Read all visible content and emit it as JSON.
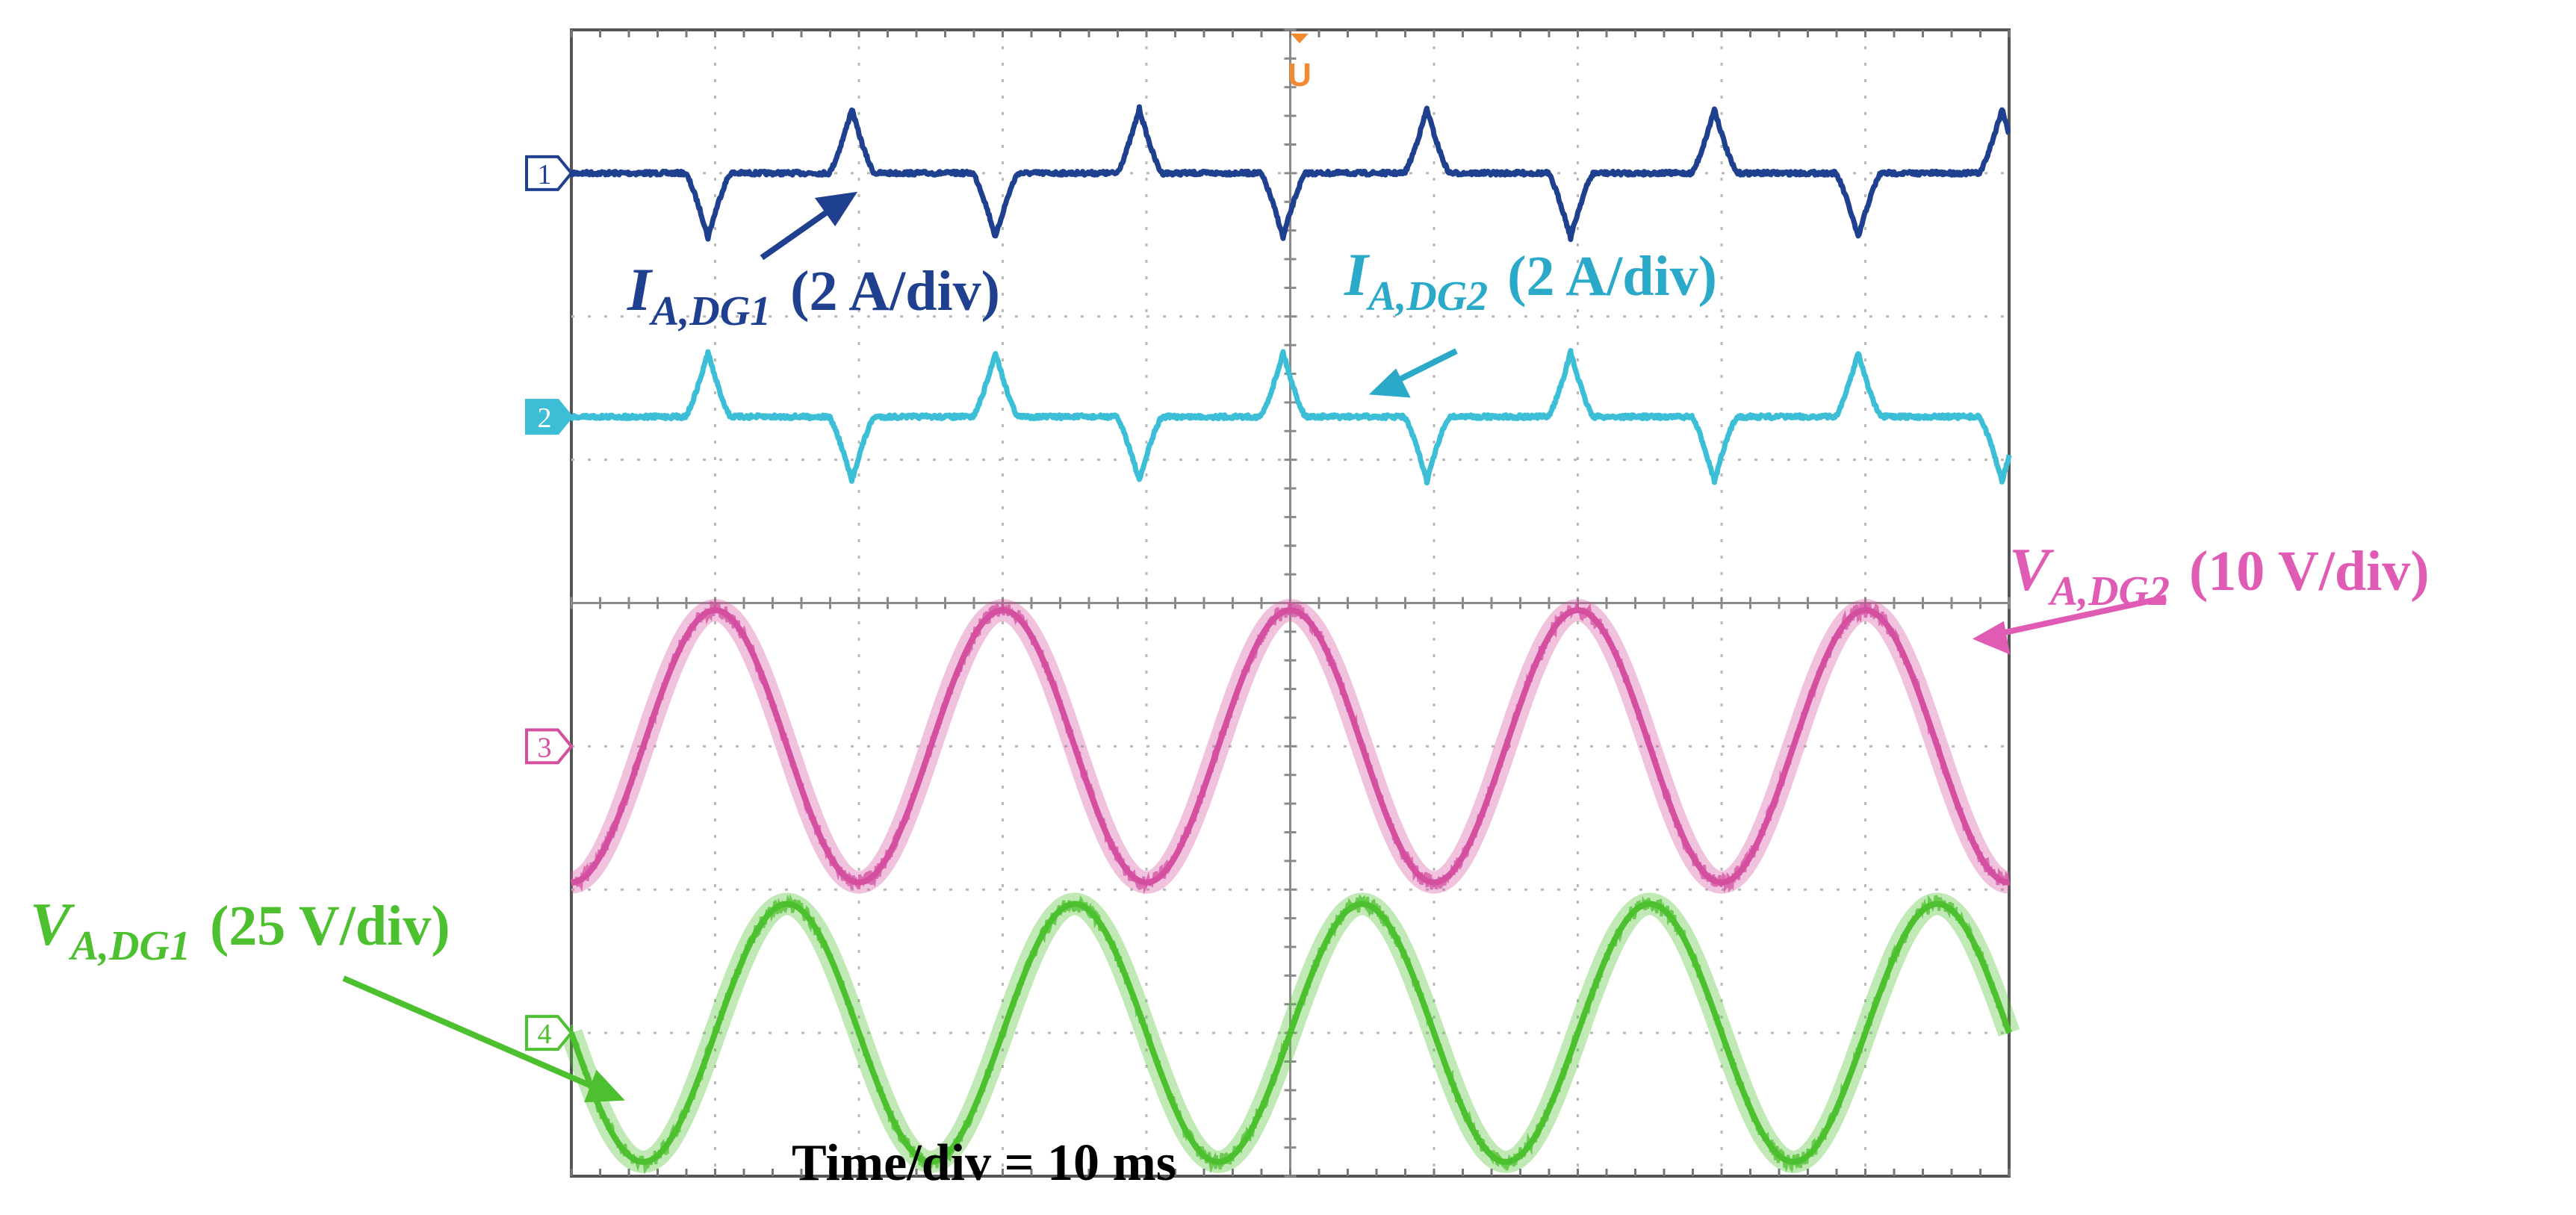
{
  "chart_data": {
    "type": "line",
    "title": "",
    "time_per_div_text": "Time/div = 10 ms",
    "time_per_div_ms": 10,
    "x_range_ms": [
      0,
      100
    ],
    "horizontal_divisions": 10,
    "vertical_divisions": 8,
    "grid": true,
    "trigger_marker": "U",
    "series": [
      {
        "channel": "1",
        "label_main": "I",
        "label_sub": "A,DG1",
        "scale": "(2 A/div)",
        "color": "#1f3f8f",
        "waveform": "pulses",
        "baseline_div": 3,
        "pulses": [
          {
            "t_ms": 9.5,
            "polarity": -1
          },
          {
            "t_ms": 19.5,
            "polarity": 1
          },
          {
            "t_ms": 29.5,
            "polarity": -1
          },
          {
            "t_ms": 39.5,
            "polarity": 1
          },
          {
            "t_ms": 49.5,
            "polarity": -1
          },
          {
            "t_ms": 59.5,
            "polarity": 1
          },
          {
            "t_ms": 69.5,
            "polarity": -1
          },
          {
            "t_ms": 79.5,
            "polarity": 1
          },
          {
            "t_ms": 89.5,
            "polarity": -1
          },
          {
            "t_ms": 99.5,
            "polarity": 1
          }
        ],
        "pulse_height_div": 0.45,
        "arrow": "up-right"
      },
      {
        "channel": "2",
        "label_main": "I",
        "label_sub": "A,DG2",
        "scale": "(2 A/div)",
        "color": "#3cbfd6",
        "waveform": "pulses",
        "baseline_div": 1.3,
        "pulses": [
          {
            "t_ms": 9.5,
            "polarity": 1
          },
          {
            "t_ms": 19.5,
            "polarity": -1
          },
          {
            "t_ms": 29.5,
            "polarity": 1
          },
          {
            "t_ms": 39.5,
            "polarity": -1
          },
          {
            "t_ms": 49.5,
            "polarity": 1
          },
          {
            "t_ms": 59.5,
            "polarity": -1
          },
          {
            "t_ms": 69.5,
            "polarity": 1
          },
          {
            "t_ms": 79.5,
            "polarity": -1
          },
          {
            "t_ms": 89.5,
            "polarity": 1
          },
          {
            "t_ms": 99.5,
            "polarity": -1
          }
        ],
        "pulse_height_div": 0.45,
        "arrow": "down-left"
      },
      {
        "channel": "3",
        "label_main": "V",
        "label_sub": "A,DG2",
        "scale": "(10 V/div)",
        "color": "#d44fa0",
        "waveform": "sine",
        "frequency_hz": 50,
        "center_div": -1,
        "amplitude_div": 0.95,
        "first_peak_ms": 10,
        "arrow": "left"
      },
      {
        "channel": "4",
        "label_main": "V",
        "label_sub": "A,DG1",
        "scale": "(25 V/div)",
        "color": "#4cc02e",
        "waveform": "sine",
        "frequency_hz": 50,
        "center_div": -3,
        "amplitude_div": 0.9,
        "first_peak_ms": 15,
        "arrow": "down-right"
      }
    ]
  }
}
